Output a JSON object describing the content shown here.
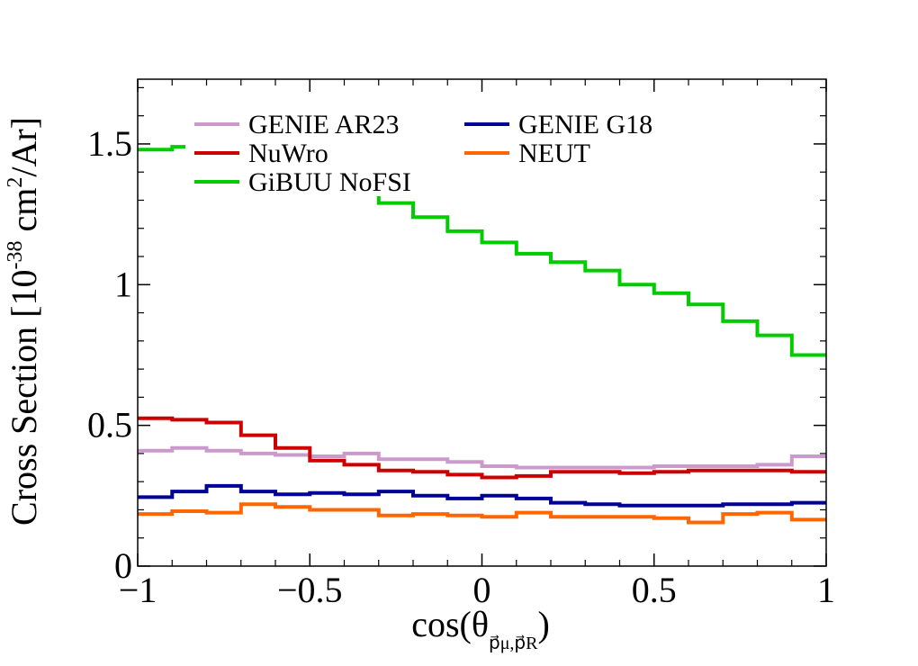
{
  "chart_data": {
    "type": "line",
    "step": true,
    "title": "",
    "xlabel": "cos(θ",
    "xlabel_sub": "p⃗μ,p⃗R",
    "xlabel_close": ")",
    "ylabel": "Cross Section [10",
    "ylabel_exp": "-38",
    "ylabel_mid": " cm",
    "ylabel_exp2": "2",
    "ylabel_end": "/Ar]",
    "xlim": [
      -1,
      1
    ],
    "ylim": [
      0,
      1.73
    ],
    "xticks": [
      -1,
      -0.5,
      0,
      0.5,
      1
    ],
    "xtick_labels": [
      "−1",
      "−0.5",
      "0",
      "0.5",
      "1"
    ],
    "yticks": [
      0,
      0.5,
      1,
      1.5
    ],
    "ytick_labels": [
      "0",
      "0.5",
      "1",
      "1.5"
    ],
    "grid": false,
    "legend_position": "top-left",
    "bin_edges": [
      -1,
      -0.9,
      -0.8,
      -0.7,
      -0.6,
      -0.5,
      -0.4,
      -0.3,
      -0.2,
      -0.1,
      0,
      0.1,
      0.2,
      0.3,
      0.4,
      0.5,
      0.6,
      0.7,
      0.8,
      0.9,
      1
    ],
    "series": [
      {
        "name": "GENIE AR23",
        "color": "#cc99cc",
        "values": [
          0.41,
          0.42,
          0.41,
          0.4,
          0.395,
          0.39,
          0.4,
          0.38,
          0.38,
          0.37,
          0.355,
          0.35,
          0.35,
          0.35,
          0.35,
          0.355,
          0.355,
          0.355,
          0.36,
          0.39
        ]
      },
      {
        "name": "GENIE G18",
        "color": "#000099",
        "values": [
          0.245,
          0.265,
          0.285,
          0.265,
          0.255,
          0.26,
          0.255,
          0.265,
          0.25,
          0.24,
          0.25,
          0.24,
          0.225,
          0.22,
          0.215,
          0.215,
          0.215,
          0.22,
          0.22,
          0.225
        ]
      },
      {
        "name": "NuWro",
        "color": "#cc0000",
        "values": [
          0.525,
          0.52,
          0.51,
          0.465,
          0.42,
          0.375,
          0.36,
          0.34,
          0.335,
          0.325,
          0.315,
          0.32,
          0.335,
          0.335,
          0.33,
          0.335,
          0.34,
          0.34,
          0.34,
          0.335
        ]
      },
      {
        "name": "NEUT",
        "color": "#ff6600",
        "values": [
          0.185,
          0.195,
          0.19,
          0.22,
          0.21,
          0.2,
          0.2,
          0.18,
          0.185,
          0.18,
          0.175,
          0.19,
          0.175,
          0.175,
          0.175,
          0.17,
          0.155,
          0.185,
          0.19,
          0.165
        ]
      },
      {
        "name": "GiBUU NoFSI",
        "color": "#00cc00",
        "values": [
          1.48,
          1.49,
          1.46,
          1.42,
          1.39,
          1.36,
          1.33,
          1.29,
          1.24,
          1.19,
          1.15,
          1.11,
          1.08,
          1.05,
          1.0,
          0.97,
          0.93,
          0.87,
          0.82,
          0.75
        ]
      }
    ]
  }
}
